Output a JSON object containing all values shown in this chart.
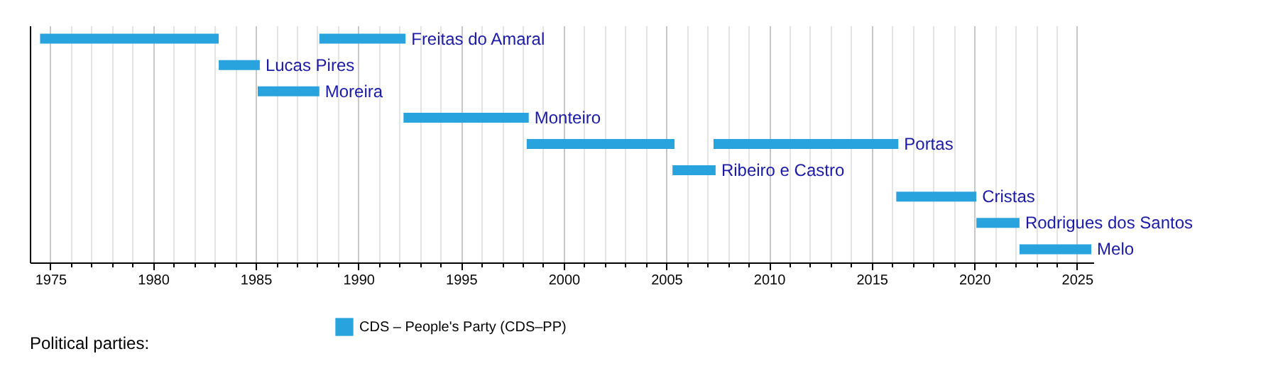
{
  "chart_data": {
    "type": "bar",
    "orientation": "horizontal",
    "legend_title": "Political parties:",
    "legend": "bottom",
    "grid": "x",
    "categories": [
      "Freitas do Amaral",
      "Lucas Pires",
      "Moreira",
      "Monteiro",
      "Portas",
      "Ribeiro e Castro",
      "Cristas",
      "Rodrigues dos Santos",
      "Melo"
    ],
    "series": [
      {
        "name": "CDS – People's Party (CDS–PP)",
        "color": "#29a3dd",
        "base": [
          1974.5,
          1983.2,
          1985.1,
          1992.2,
          1998.2,
          2005.3,
          2016.2,
          2020.1,
          2022.2
        ],
        "values": [
          8.7,
          2.0,
          3.0,
          6.1,
          7.2,
          2.1,
          3.9,
          2.1,
          3.5
        ]
      },
      {
        "color": "#29a3dd",
        "base": [
          1988.1,
          null,
          null,
          null,
          2007.3,
          null,
          null,
          null,
          null
        ],
        "values": [
          4.2,
          null,
          null,
          null,
          9.0,
          null,
          null,
          null,
          null
        ]
      }
    ],
    "xlim": [
      1974,
      2025.8
    ],
    "xticks": [
      1975,
      {
        "value": 1976,
        "label": null
      },
      {
        "value": 1977,
        "label": null
      },
      {
        "value": 1978,
        "label": null
      },
      {
        "value": 1979,
        "label": null
      },
      1980,
      {
        "value": 1981,
        "label": null
      },
      {
        "value": 1982,
        "label": null
      },
      {
        "value": 1983,
        "label": null
      },
      {
        "value": 1984,
        "label": null
      },
      1985,
      {
        "value": 1986,
        "label": null
      },
      {
        "value": 1987,
        "label": null
      },
      {
        "value": 1988,
        "label": null
      },
      {
        "value": 1989,
        "label": null
      },
      1990,
      {
        "value": 1991,
        "label": null
      },
      {
        "value": 1992,
        "label": null
      },
      {
        "value": 1993,
        "label": null
      },
      {
        "value": 1994,
        "label": null
      },
      1995,
      {
        "value": 1996,
        "label": null
      },
      {
        "value": 1997,
        "label": null
      },
      {
        "value": 1998,
        "label": null
      },
      {
        "value": 1999,
        "label": null
      },
      2000,
      {
        "value": 2001,
        "label": null
      },
      {
        "value": 2002,
        "label": null
      },
      {
        "value": 2003,
        "label": null
      },
      {
        "value": 2004,
        "label": null
      },
      2005,
      {
        "value": 2006,
        "label": null
      },
      {
        "value": 2007,
        "label": null
      },
      {
        "value": 2008,
        "label": null
      },
      {
        "value": 2009,
        "label": null
      },
      2010,
      {
        "value": 2011,
        "label": null
      },
      {
        "value": 2012,
        "label": null
      },
      {
        "value": 2013,
        "label": null
      },
      {
        "value": 2014,
        "label": null
      },
      2015,
      {
        "value": 2016,
        "label": null
      },
      {
        "value": 2017,
        "label": null
      },
      {
        "value": 2018,
        "label": null
      },
      {
        "value": 2019,
        "label": null
      },
      2020,
      {
        "value": 2021,
        "label": null
      },
      {
        "value": 2022,
        "label": null
      },
      {
        "value": 2023,
        "label": null
      },
      {
        "value": 2024,
        "label": null
      },
      2025
    ]
  }
}
